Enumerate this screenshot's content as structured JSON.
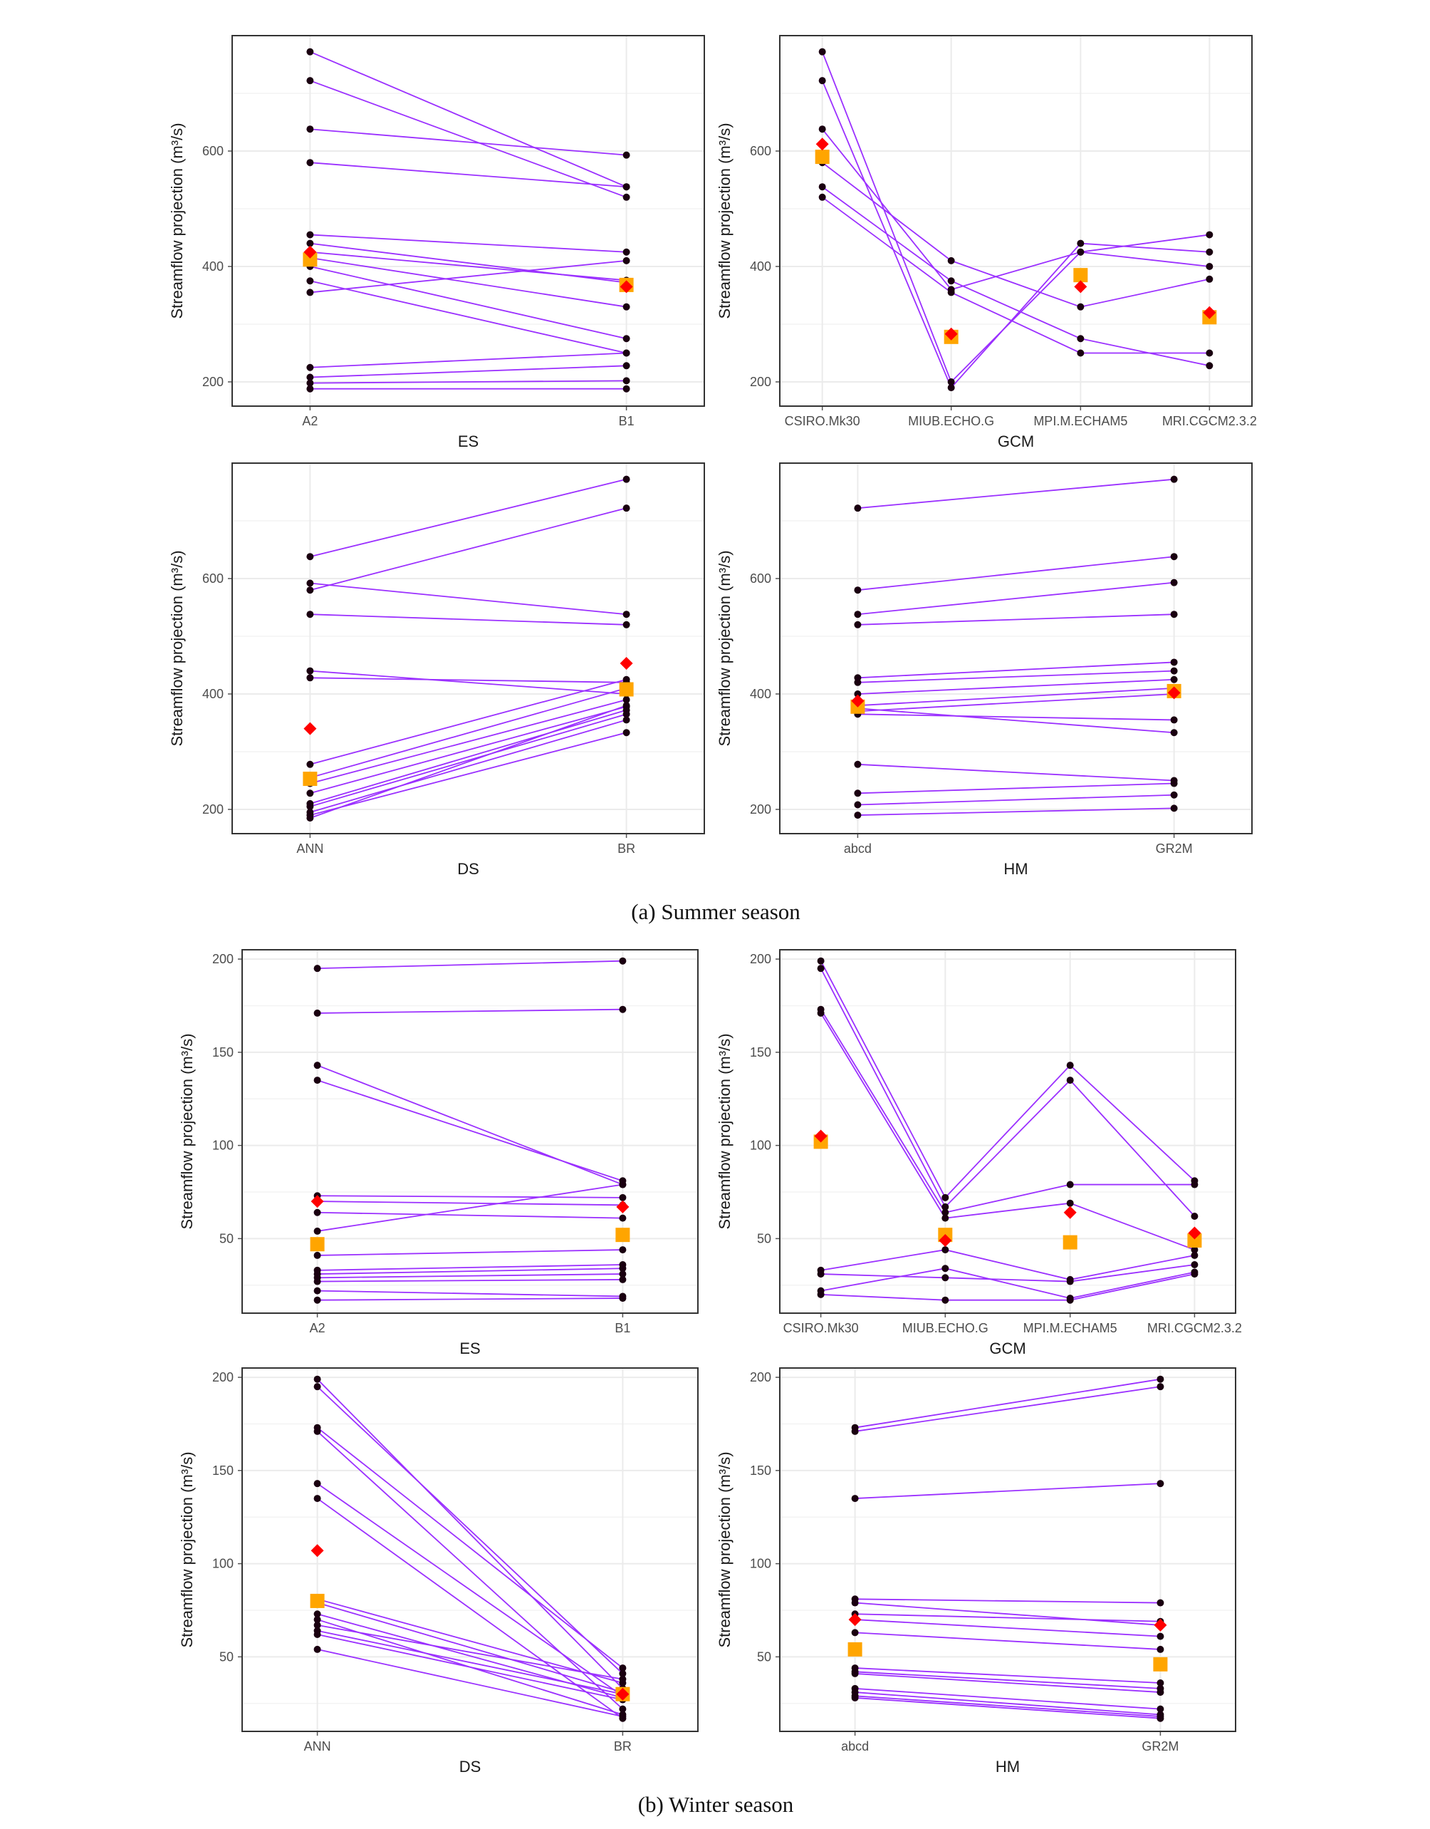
{
  "captions": {
    "summer": "(a) Summer season",
    "winter": "(b) Winter season"
  },
  "colors": {
    "line": "#9b30ff",
    "point": "#1a0010",
    "mean_marker": "#ff0000",
    "median_marker": "#ffa500",
    "panel_border": "#333333",
    "grid": "#ebebeb"
  },
  "chart_data": [
    {
      "type": "line",
      "season": "summer",
      "xlabel": "ES",
      "ylabel": "Streamflow projection (m³/s)",
      "ylim": [
        158,
        800
      ],
      "yticks": [
        200,
        400,
        600
      ],
      "categories": [
        "A2",
        "B1"
      ],
      "series": [
        {
          "values": [
            772,
            538
          ]
        },
        {
          "values": [
            722,
            520
          ]
        },
        {
          "values": [
            638,
            593
          ]
        },
        {
          "values": [
            580,
            538
          ]
        },
        {
          "values": [
            455,
            425
          ]
        },
        {
          "values": [
            440,
            372
          ]
        },
        {
          "values": [
            425,
            376
          ]
        },
        {
          "values": [
            415,
            330
          ]
        },
        {
          "values": [
            400,
            275
          ]
        },
        {
          "values": [
            375,
            250
          ]
        },
        {
          "values": [
            355,
            410
          ]
        },
        {
          "values": [
            225,
            250
          ]
        },
        {
          "values": [
            208,
            228
          ]
        },
        {
          "values": [
            198,
            202
          ]
        },
        {
          "values": [
            188,
            188
          ]
        }
      ],
      "mean_markers": [
        425,
        365
      ],
      "median_markers": [
        412,
        368
      ]
    },
    {
      "type": "line",
      "season": "summer",
      "xlabel": "GCM",
      "ylabel": "Streamflow projection (m³/s)",
      "ylim": [
        158,
        800
      ],
      "yticks": [
        200,
        400,
        600
      ],
      "categories": [
        "CSIRO.Mk30",
        "MIUB.ECHO.G",
        "MPI.M.ECHAM5",
        "MRI.CGCM2.3.2"
      ],
      "series": [
        {
          "values": [
            772,
            200,
            425,
            455
          ]
        },
        {
          "values": [
            722,
            190,
            440,
            425
          ]
        },
        {
          "values": [
            638,
            360,
            425,
            400
          ]
        },
        {
          "values": [
            580,
            410,
            330,
            378
          ]
        },
        {
          "values": [
            538,
            375,
            275,
            228
          ]
        },
        {
          "values": [
            520,
            355,
            250,
            250
          ]
        }
      ],
      "mean_markers": [
        612,
        283,
        365,
        320
      ],
      "median_markers": [
        590,
        278,
        385,
        312
      ]
    },
    {
      "type": "line",
      "season": "summer",
      "xlabel": "DS",
      "ylabel": "Streamflow projection (m³/s)",
      "ylim": [
        158,
        800
      ],
      "yticks": [
        200,
        400,
        600
      ],
      "categories": [
        "ANN",
        "BR"
      ],
      "series": [
        {
          "values": [
            638,
            772
          ]
        },
        {
          "values": [
            592,
            538
          ]
        },
        {
          "values": [
            580,
            722
          ]
        },
        {
          "values": [
            538,
            520
          ]
        },
        {
          "values": [
            440,
            400
          ]
        },
        {
          "values": [
            428,
            420
          ]
        },
        {
          "values": [
            278,
            425
          ]
        },
        {
          "values": [
            255,
            410
          ]
        },
        {
          "values": [
            245,
            390
          ]
        },
        {
          "values": [
            228,
            378
          ]
        },
        {
          "values": [
            210,
            372
          ]
        },
        {
          "values": [
            205,
            365
          ]
        },
        {
          "values": [
            195,
            355
          ]
        },
        {
          "values": [
            190,
            333
          ]
        },
        {
          "values": [
            185,
            380
          ]
        }
      ],
      "mean_markers": [
        340,
        453
      ],
      "median_markers": [
        253,
        408
      ]
    },
    {
      "type": "line",
      "season": "summer",
      "xlabel": "HM",
      "ylabel": "Streamflow projection (m³/s)",
      "ylim": [
        158,
        800
      ],
      "yticks": [
        200,
        400,
        600
      ],
      "categories": [
        "abcd",
        "GR2M"
      ],
      "series": [
        {
          "values": [
            722,
            772
          ]
        },
        {
          "values": [
            580,
            638
          ]
        },
        {
          "values": [
            538,
            593
          ]
        },
        {
          "values": [
            520,
            538
          ]
        },
        {
          "values": [
            428,
            455
          ]
        },
        {
          "values": [
            420,
            440
          ]
        },
        {
          "values": [
            400,
            425
          ]
        },
        {
          "values": [
            380,
            410
          ]
        },
        {
          "values": [
            370,
            400
          ]
        },
        {
          "values": [
            365,
            355
          ]
        },
        {
          "values": [
            375,
            333
          ]
        },
        {
          "values": [
            278,
            250
          ]
        },
        {
          "values": [
            228,
            245
          ]
        },
        {
          "values": [
            208,
            225
          ]
        },
        {
          "values": [
            190,
            202
          ]
        }
      ],
      "mean_markers": [
        388,
        402
      ],
      "median_markers": [
        378,
        405
      ]
    },
    {
      "type": "line",
      "season": "winter",
      "xlabel": "ES",
      "ylabel": "Streamflow projection (m³/s)",
      "ylim": [
        10,
        205
      ],
      "yticks": [
        50,
        100,
        150,
        200
      ],
      "categories": [
        "A2",
        "B1"
      ],
      "series": [
        {
          "values": [
            195,
            199
          ]
        },
        {
          "values": [
            171,
            173
          ]
        },
        {
          "values": [
            143,
            79
          ]
        },
        {
          "values": [
            135,
            81
          ]
        },
        {
          "values": [
            73,
            72
          ]
        },
        {
          "values": [
            70,
            68
          ]
        },
        {
          "values": [
            64,
            61
          ]
        },
        {
          "values": [
            54,
            79
          ]
        },
        {
          "values": [
            41,
            44
          ]
        },
        {
          "values": [
            33,
            36
          ]
        },
        {
          "values": [
            31,
            34
          ]
        },
        {
          "values": [
            29,
            31
          ]
        },
        {
          "values": [
            27,
            28
          ]
        },
        {
          "values": [
            22,
            19
          ]
        },
        {
          "values": [
            17,
            18
          ]
        }
      ],
      "mean_markers": [
        70,
        67
      ],
      "median_markers": [
        47,
        52
      ]
    },
    {
      "type": "line",
      "season": "winter",
      "xlabel": "GCM",
      "ylabel": "Streamflow projection (m³/s)",
      "ylim": [
        10,
        205
      ],
      "yticks": [
        50,
        100,
        150,
        200
      ],
      "categories": [
        "CSIRO.Mk30",
        "MIUB.ECHO.G",
        "MPI.M.ECHAM5",
        "MRI.CGCM2.3.2"
      ],
      "series": [
        {
          "values": [
            199,
            72,
            143,
            81
          ]
        },
        {
          "values": [
            195,
            67,
            135,
            62
          ]
        },
        {
          "values": [
            173,
            64,
            79,
            79
          ]
        },
        {
          "values": [
            171,
            61,
            69,
            44
          ]
        },
        {
          "values": [
            33,
            44,
            28,
            41
          ]
        },
        {
          "values": [
            31,
            29,
            27,
            36
          ]
        },
        {
          "values": [
            22,
            34,
            18,
            32
          ]
        },
        {
          "values": [
            20,
            17,
            17,
            31
          ]
        }
      ],
      "mean_markers": [
        105,
        49,
        64,
        53
      ],
      "median_markers": [
        102,
        52,
        48,
        49
      ]
    },
    {
      "type": "line",
      "season": "winter",
      "xlabel": "DS",
      "ylabel": "Streamflow projection (m³/s)",
      "ylim": [
        10,
        205
      ],
      "yticks": [
        50,
        100,
        150,
        200
      ],
      "categories": [
        "ANN",
        "BR"
      ],
      "series": [
        {
          "values": [
            199,
            33
          ]
        },
        {
          "values": [
            195,
            41
          ]
        },
        {
          "values": [
            173,
            44
          ]
        },
        {
          "values": [
            171,
            22
          ]
        },
        {
          "values": [
            143,
            29
          ]
        },
        {
          "values": [
            135,
            17
          ]
        },
        {
          "values": [
            81,
            36
          ]
        },
        {
          "values": [
            79,
            31
          ]
        },
        {
          "values": [
            73,
            28
          ]
        },
        {
          "values": [
            70,
            19
          ]
        },
        {
          "values": [
            67,
            38
          ]
        },
        {
          "values": [
            64,
            30
          ]
        },
        {
          "values": [
            62,
            27
          ]
        },
        {
          "values": [
            54,
            18
          ]
        }
      ],
      "mean_markers": [
        107,
        30
      ],
      "median_markers": [
        80,
        30
      ]
    },
    {
      "type": "line",
      "season": "winter",
      "xlabel": "HM",
      "ylabel": "Streamflow projection (m³/s)",
      "ylim": [
        10,
        205
      ],
      "yticks": [
        50,
        100,
        150,
        200
      ],
      "categories": [
        "abcd",
        "GR2M"
      ],
      "series": [
        {
          "values": [
            173,
            199
          ]
        },
        {
          "values": [
            171,
            195
          ]
        },
        {
          "values": [
            135,
            143
          ]
        },
        {
          "values": [
            81,
            79
          ]
        },
        {
          "values": [
            79,
            67
          ]
        },
        {
          "values": [
            73,
            69
          ]
        },
        {
          "values": [
            70,
            61
          ]
        },
        {
          "values": [
            63,
            54
          ]
        },
        {
          "values": [
            44,
            36
          ]
        },
        {
          "values": [
            42,
            33
          ]
        },
        {
          "values": [
            41,
            31
          ]
        },
        {
          "values": [
            33,
            22
          ]
        },
        {
          "values": [
            31,
            19
          ]
        },
        {
          "values": [
            29,
            18
          ]
        },
        {
          "values": [
            28,
            17
          ]
        }
      ],
      "mean_markers": [
        70,
        67
      ],
      "median_markers": [
        54,
        46
      ]
    }
  ]
}
